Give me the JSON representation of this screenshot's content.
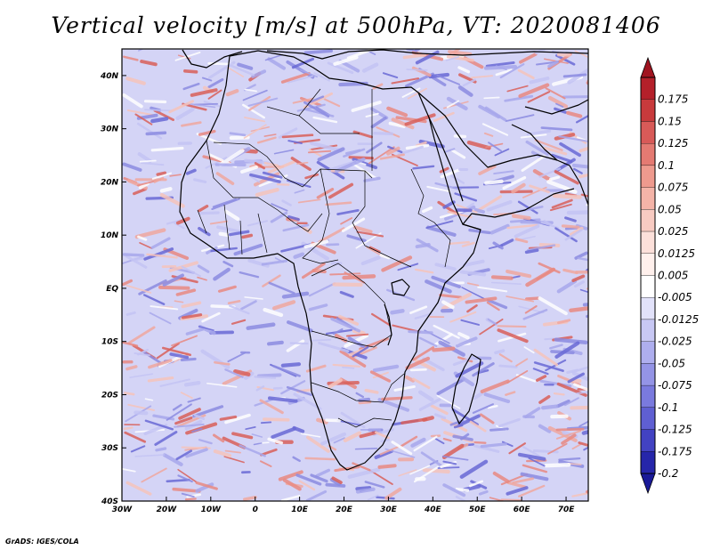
{
  "title": "Vertical velocity [m/s] at 500hPa, VT: 2020081406",
  "credit": "GrADS: IGES/COLA",
  "map": {
    "region": "Africa",
    "lat_ticks": [
      {
        "lat": 40,
        "label": "40N"
      },
      {
        "lat": 30,
        "label": "30N"
      },
      {
        "lat": 20,
        "label": "20N"
      },
      {
        "lat": 10,
        "label": "10N"
      },
      {
        "lat": 0,
        "label": "EQ"
      },
      {
        "lat": -10,
        "label": "10S"
      },
      {
        "lat": -20,
        "label": "20S"
      },
      {
        "lat": -30,
        "label": "30S"
      },
      {
        "lat": -40,
        "label": "40S"
      }
    ],
    "lon_ticks": [
      {
        "lon": -30,
        "label": "30W"
      },
      {
        "lon": -20,
        "label": "20W"
      },
      {
        "lon": -10,
        "label": "10W"
      },
      {
        "lon": 0,
        "label": "0"
      },
      {
        "lon": 10,
        "label": "10E"
      },
      {
        "lon": 20,
        "label": "20E"
      },
      {
        "lon": 30,
        "label": "30E"
      },
      {
        "lon": 40,
        "label": "40E"
      },
      {
        "lon": 50,
        "label": "50E"
      },
      {
        "lon": 60,
        "label": "60E"
      },
      {
        "lon": 70,
        "label": "70E"
      }
    ]
  },
  "colorbar": {
    "levels": [
      {
        "label": "0.175",
        "color": "#b4202a"
      },
      {
        "label": "0.15",
        "color": "#c83a3c"
      },
      {
        "label": "0.125",
        "color": "#d85a58"
      },
      {
        "label": "0.1",
        "color": "#e47a72"
      },
      {
        "label": "0.075",
        "color": "#ee9a8e"
      },
      {
        "label": "0.05",
        "color": "#f4b4a8"
      },
      {
        "label": "0.025",
        "color": "#f8cbc2"
      },
      {
        "label": "0.0125",
        "color": "#fce0da"
      },
      {
        "label": "0.005",
        "color": "#fff0ec"
      },
      {
        "label": "-0.005",
        "color": "#ffffff"
      },
      {
        "label": "-0.0125",
        "color": "#e2e2fa"
      },
      {
        "label": "-0.025",
        "color": "#c8c8f4"
      },
      {
        "label": "-0.05",
        "color": "#aeaeee"
      },
      {
        "label": "-0.075",
        "color": "#9494e6"
      },
      {
        "label": "-0.1",
        "color": "#7a7ade"
      },
      {
        "label": "-0.125",
        "color": "#5f5fd2"
      },
      {
        "label": "-0.175",
        "color": "#4242c2"
      },
      {
        "label": "-0.2",
        "color": "#2626aa"
      }
    ],
    "top_color": "#a01420",
    "bottom_color": "#1a1a98"
  }
}
